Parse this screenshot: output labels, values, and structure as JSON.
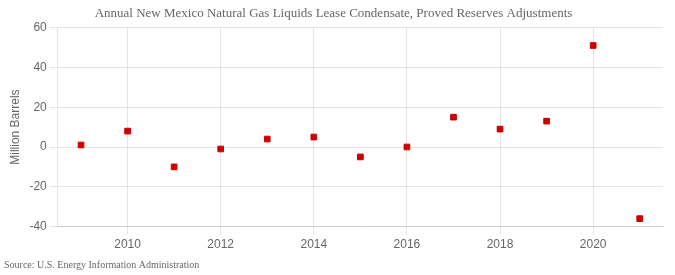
{
  "chart_data": {
    "type": "scatter",
    "title": "Annual New Mexico Natural Gas Liquids Lease Condensate, Proved Reserves Adjustments",
    "ylabel": "Million Barrels",
    "source": "Source: U.S. Energy Information Administration",
    "x": [
      2009,
      2010,
      2011,
      2012,
      2013,
      2014,
      2015,
      2016,
      2017,
      2018,
      2019,
      2020,
      2021
    ],
    "values": [
      1.0,
      8.0,
      -10.0,
      -1.0,
      4.0,
      5.0,
      -5.0,
      0.0,
      15.0,
      9.0,
      13.0,
      51.0,
      -36.0
    ],
    "color": "#cc0000",
    "marker": "square",
    "xlim": [
      2008.5,
      2021.5
    ],
    "xticks": [
      2010,
      2012,
      2014,
      2016,
      2018,
      2020
    ],
    "ylim": [
      -40,
      60
    ],
    "yticks": [
      -40,
      -20,
      0,
      20,
      40,
      60
    ],
    "grid": true
  }
}
